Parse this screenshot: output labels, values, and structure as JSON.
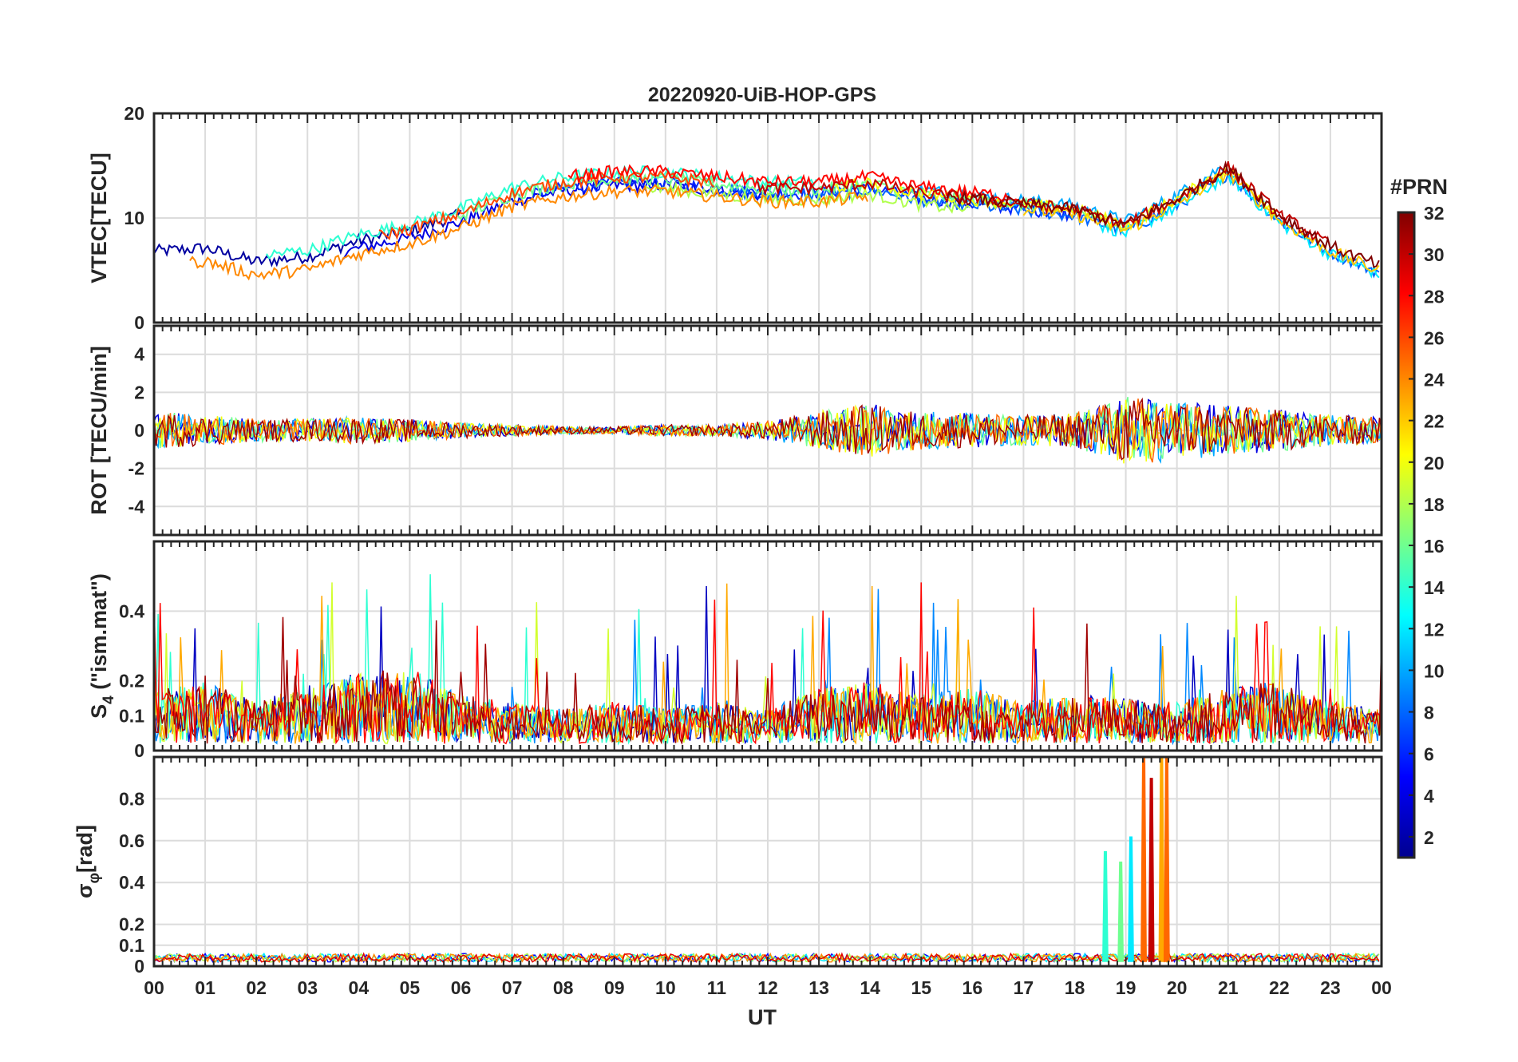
{
  "chart_data": {
    "type": "line",
    "title": "20220920-UiB-HOP-GPS",
    "xlabel": "UT",
    "x_tick_labels": [
      "00",
      "01",
      "02",
      "03",
      "04",
      "05",
      "06",
      "07",
      "08",
      "09",
      "10",
      "11",
      "12",
      "13",
      "14",
      "15",
      "16",
      "17",
      "18",
      "19",
      "20",
      "21",
      "22",
      "23",
      "00"
    ],
    "xlim": [
      0,
      24
    ],
    "grid": true,
    "colorbar": {
      "label": "#PRN",
      "range": [
        1,
        32
      ],
      "tick_labels": [
        "2",
        "4",
        "6",
        "8",
        "10",
        "12",
        "14",
        "16",
        "18",
        "20",
        "22",
        "24",
        "26",
        "28",
        "30",
        "32"
      ],
      "colormap": "jet"
    },
    "panels": [
      {
        "ylabel": "VTEC[TECU]",
        "ylim": [
          0,
          20
        ],
        "y_tick_labels": [
          "0",
          "10",
          "20"
        ],
        "profile": {
          "x": [
            0,
            1,
            2,
            3,
            4,
            5,
            6,
            7,
            8,
            9,
            10,
            11,
            12,
            13,
            14,
            15,
            16,
            17,
            18,
            19,
            20,
            21,
            22,
            23,
            24
          ],
          "y": [
            6.5,
            6.8,
            5.5,
            6.0,
            7.5,
            8.5,
            10.0,
            12.0,
            13.0,
            13.5,
            13.5,
            13.0,
            12.5,
            12.5,
            13.0,
            12.0,
            11.5,
            11.0,
            10.5,
            9.0,
            11.5,
            14.5,
            10.0,
            7.0,
            5.0
          ]
        }
      },
      {
        "ylabel": "ROT [TECU/min]",
        "ylim": [
          -5.5,
          5.5
        ],
        "y_tick_labels": [
          "-4",
          "-2",
          "0",
          "2",
          "4"
        ],
        "activity": {
          "x": [
            0,
            1,
            2,
            3,
            4,
            5,
            6,
            7,
            8,
            9,
            10,
            11,
            12,
            13,
            14,
            15,
            16,
            17,
            18,
            19,
            20,
            21,
            22,
            23,
            24
          ],
          "amplitude": [
            1.0,
            0.8,
            0.6,
            0.6,
            0.7,
            0.6,
            0.4,
            0.3,
            0.2,
            0.2,
            0.3,
            0.3,
            0.5,
            1.0,
            1.4,
            1.0,
            0.9,
            0.8,
            0.9,
            1.8,
            1.6,
            1.3,
            1.1,
            0.8,
            0.7
          ]
        }
      },
      {
        "ylabel": "S4 (\"ism.mat\")",
        "ylabel_main": "S",
        "ylabel_sub": "4",
        "ylabel_rest": " (\"ism.mat\")",
        "ylim": [
          0,
          0.6
        ],
        "y_tick_labels": [
          "0",
          "0.1",
          "0.2",
          "0.4"
        ],
        "activity": {
          "x": [
            0,
            1,
            2,
            3,
            4,
            5,
            6,
            7,
            8,
            9,
            10,
            11,
            12,
            13,
            14,
            15,
            16,
            17,
            18,
            19,
            20,
            21,
            22,
            23,
            24
          ],
          "level": [
            0.15,
            0.18,
            0.12,
            0.16,
            0.2,
            0.22,
            0.14,
            0.12,
            0.1,
            0.12,
            0.1,
            0.12,
            0.1,
            0.16,
            0.18,
            0.14,
            0.16,
            0.12,
            0.14,
            0.13,
            0.12,
            0.16,
            0.18,
            0.12,
            0.1
          ]
        }
      },
      {
        "ylabel": "σφ[rad]",
        "ylabel_main": "σ",
        "ylabel_sub": "φ",
        "ylabel_rest": "[rad]",
        "ylim": [
          0,
          1
        ],
        "y_tick_labels": [
          "0",
          "0.1",
          "0.2",
          "0.4",
          "0.6",
          "0.8"
        ],
        "spikes": [
          {
            "x": 18.6,
            "y": 0.55,
            "prn": 14
          },
          {
            "x": 18.9,
            "y": 0.5,
            "prn": 16
          },
          {
            "x": 19.1,
            "y": 0.62,
            "prn": 12
          },
          {
            "x": 19.35,
            "y": 1.0,
            "prn": 25
          },
          {
            "x": 19.5,
            "y": 0.9,
            "prn": 30
          },
          {
            "x": 19.7,
            "y": 1.0,
            "prn": 23
          },
          {
            "x": 19.8,
            "y": 1.0,
            "prn": 25
          }
        ]
      }
    ]
  }
}
